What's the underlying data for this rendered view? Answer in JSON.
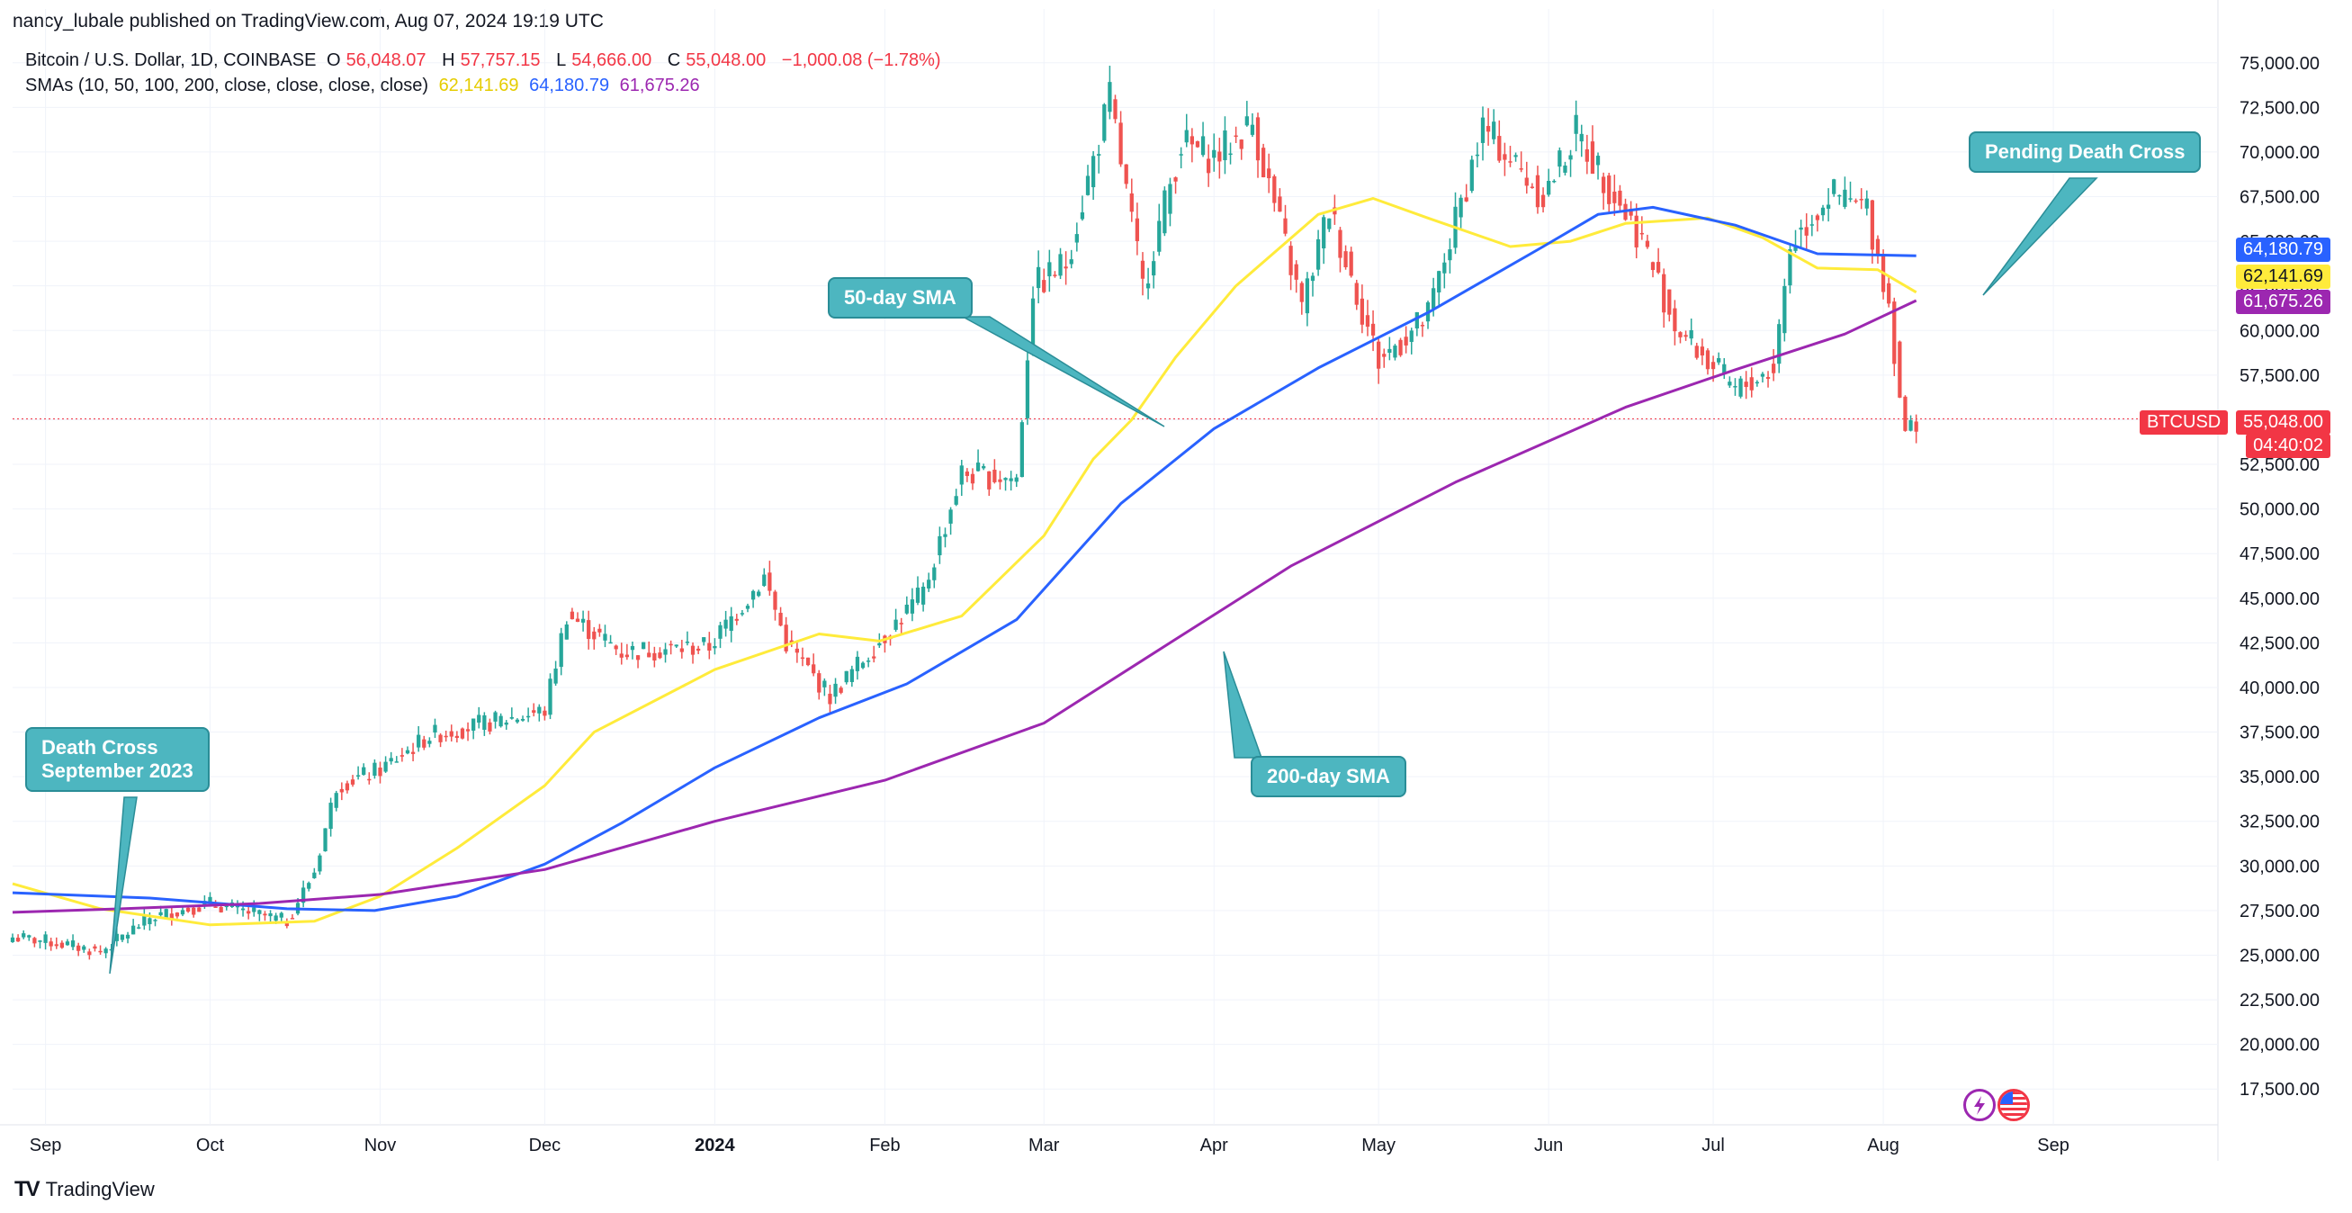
{
  "header": {
    "published": "nancy_lubale published on TradingView.com, Aug 07, 2024 19:19 UTC",
    "symbol": "Bitcoin / U.S. Dollar, 1D, COINBASE",
    "open_label": "O",
    "open": "56,048.07",
    "high_label": "H",
    "high": "57,757.15",
    "low_label": "L",
    "low": "54,666.00",
    "close_label": "C",
    "close": "55,048.00",
    "change": "−1,000.08 (−1.78%)",
    "sma_label": "SMAs (10, 50, 100, 200, close, close, close, close)",
    "sma50_value": "62,141.69",
    "sma100_value": "64,180.79",
    "sma200_value": "61,675.26"
  },
  "footer": {
    "brand": "TradingView"
  },
  "colors": {
    "up": "#26a69a",
    "down": "#ef5350",
    "sma50": "#ffeb3b",
    "sma100": "#2962ff",
    "sma200": "#9c27b0",
    "callout": "#4db6c0",
    "price_tag": "#f23645"
  },
  "price_tags": {
    "sma100": "64,180.79",
    "sma50": "62,141.69",
    "sma200": "61,675.26",
    "symbol": "BTCUSD",
    "last": "55,048.00",
    "countdown": "04:40:02"
  },
  "callouts": {
    "death_cross": "Death Cross\nSeptember 2023",
    "sma50": "50-day SMA",
    "sma200": "200-day SMA",
    "pending": "Pending Death Cross"
  },
  "chart_data": {
    "type": "candlestick",
    "title": "Bitcoin / U.S. Dollar, 1D, COINBASE",
    "x_tick_labels": [
      "Sep",
      "Oct",
      "Nov",
      "Dec",
      "2024",
      "Feb",
      "Mar",
      "Apr",
      "May",
      "Jun",
      "Jul",
      "Aug",
      "Sep"
    ],
    "x_tick_dates": [
      "2023-09-01",
      "2023-10-01",
      "2023-11-01",
      "2023-12-01",
      "2024-01-01",
      "2024-02-01",
      "2024-03-01",
      "2024-04-01",
      "2024-05-01",
      "2024-06-01",
      "2024-07-01",
      "2024-08-01",
      "2024-09-01"
    ],
    "y_tick_labels": [
      "75,000.00",
      "72,500.00",
      "70,000.00",
      "67,500.00",
      "65,000.00",
      "62,500.00",
      "60,000.00",
      "57,500.00",
      "55,000.00",
      "52,500.00",
      "50,000.00",
      "47,500.00",
      "45,000.00",
      "42,500.00",
      "40,000.00",
      "37,500.00",
      "35,000.00",
      "32,500.00",
      "30,000.00",
      "27,500.00",
      "25,000.00",
      "22,500.00",
      "20,000.00",
      "17,500.00"
    ],
    "ylim": [
      16000,
      76500
    ],
    "xlim": [
      "2023-08-26",
      "2024-10-01"
    ],
    "grid": true,
    "close_path": [
      {
        "date": "2023-08-26",
        "close": 26000
      },
      {
        "date": "2023-09-01",
        "close": 25800
      },
      {
        "date": "2023-09-11",
        "close": 25200
      },
      {
        "date": "2023-09-20",
        "close": 27100
      },
      {
        "date": "2023-10-01",
        "close": 27900
      },
      {
        "date": "2023-10-15",
        "close": 26900
      },
      {
        "date": "2023-10-20",
        "close": 29700
      },
      {
        "date": "2023-10-24",
        "close": 34500
      },
      {
        "date": "2023-11-01",
        "close": 35400
      },
      {
        "date": "2023-11-10",
        "close": 37300
      },
      {
        "date": "2023-12-01",
        "close": 38700
      },
      {
        "date": "2023-12-05",
        "close": 44100
      },
      {
        "date": "2023-12-15",
        "close": 42000
      },
      {
        "date": "2023-12-31",
        "close": 42300
      },
      {
        "date": "2024-01-10",
        "close": 46200
      },
      {
        "date": "2024-01-14",
        "close": 42500
      },
      {
        "date": "2024-01-22",
        "close": 39500
      },
      {
        "date": "2024-01-31",
        "close": 42600
      },
      {
        "date": "2024-02-08",
        "close": 45300
      },
      {
        "date": "2024-02-15",
        "close": 52000
      },
      {
        "date": "2024-02-25",
        "close": 51700
      },
      {
        "date": "2024-02-28",
        "close": 62400
      },
      {
        "date": "2024-03-05",
        "close": 63800
      },
      {
        "date": "2024-03-13",
        "close": 73000
      },
      {
        "date": "2024-03-19",
        "close": 62400
      },
      {
        "date": "2024-03-26",
        "close": 70500
      },
      {
        "date": "2024-04-01",
        "close": 69700
      },
      {
        "date": "2024-04-08",
        "close": 71600
      },
      {
        "date": "2024-04-17",
        "close": 61300
      },
      {
        "date": "2024-04-22",
        "close": 66800
      },
      {
        "date": "2024-05-01",
        "close": 58300
      },
      {
        "date": "2024-05-10",
        "close": 60800
      },
      {
        "date": "2024-05-20",
        "close": 71400
      },
      {
        "date": "2024-05-31",
        "close": 67500
      },
      {
        "date": "2024-06-06",
        "close": 71100
      },
      {
        "date": "2024-06-18",
        "close": 65100
      },
      {
        "date": "2024-06-24",
        "close": 60300
      },
      {
        "date": "2024-07-05",
        "close": 56600
      },
      {
        "date": "2024-07-12",
        "close": 57900
      },
      {
        "date": "2024-07-15",
        "close": 64800
      },
      {
        "date": "2024-07-22",
        "close": 67600
      },
      {
        "date": "2024-07-29",
        "close": 66800
      },
      {
        "date": "2024-08-02",
        "close": 61500
      },
      {
        "date": "2024-08-05",
        "close": 54000
      },
      {
        "date": "2024-08-07",
        "close": 55048
      }
    ],
    "series": [
      {
        "name": "SMA 50",
        "color": "#ffeb3b",
        "points": [
          {
            "date": "2023-08-26",
            "value": 29000
          },
          {
            "date": "2023-09-11",
            "value": 27600
          },
          {
            "date": "2023-10-01",
            "value": 26700
          },
          {
            "date": "2023-10-20",
            "value": 26900
          },
          {
            "date": "2023-11-01",
            "value": 28300
          },
          {
            "date": "2023-11-15",
            "value": 31000
          },
          {
            "date": "2023-12-01",
            "value": 34500
          },
          {
            "date": "2023-12-10",
            "value": 37500
          },
          {
            "date": "2024-01-01",
            "value": 41000
          },
          {
            "date": "2024-01-20",
            "value": 43000
          },
          {
            "date": "2024-01-31",
            "value": 42600
          },
          {
            "date": "2024-02-15",
            "value": 44000
          },
          {
            "date": "2024-03-01",
            "value": 48500
          },
          {
            "date": "2024-03-10",
            "value": 52800
          },
          {
            "date": "2024-03-17",
            "value": 55000
          },
          {
            "date": "2024-03-25",
            "value": 58500
          },
          {
            "date": "2024-04-05",
            "value": 62500
          },
          {
            "date": "2024-04-20",
            "value": 66500
          },
          {
            "date": "2024-04-30",
            "value": 67400
          },
          {
            "date": "2024-05-10",
            "value": 66300
          },
          {
            "date": "2024-05-25",
            "value": 64700
          },
          {
            "date": "2024-06-05",
            "value": 65000
          },
          {
            "date": "2024-06-15",
            "value": 66000
          },
          {
            "date": "2024-06-30",
            "value": 66300
          },
          {
            "date": "2024-07-10",
            "value": 65200
          },
          {
            "date": "2024-07-20",
            "value": 63500
          },
          {
            "date": "2024-07-31",
            "value": 63400
          },
          {
            "date": "2024-08-07",
            "value": 62141.69
          }
        ]
      },
      {
        "name": "SMA 100",
        "color": "#2962ff",
        "points": [
          {
            "date": "2023-08-26",
            "value": 28500
          },
          {
            "date": "2023-09-20",
            "value": 28200
          },
          {
            "date": "2023-10-15",
            "value": 27600
          },
          {
            "date": "2023-10-31",
            "value": 27500
          },
          {
            "date": "2023-11-15",
            "value": 28300
          },
          {
            "date": "2023-12-01",
            "value": 30100
          },
          {
            "date": "2023-12-15",
            "value": 32400
          },
          {
            "date": "2024-01-01",
            "value": 35500
          },
          {
            "date": "2024-01-20",
            "value": 38300
          },
          {
            "date": "2024-02-05",
            "value": 40200
          },
          {
            "date": "2024-02-25",
            "value": 43800
          },
          {
            "date": "2024-03-15",
            "value": 50300
          },
          {
            "date": "2024-04-01",
            "value": 54500
          },
          {
            "date": "2024-04-20",
            "value": 57900
          },
          {
            "date": "2024-05-10",
            "value": 61000
          },
          {
            "date": "2024-05-31",
            "value": 64700
          },
          {
            "date": "2024-06-10",
            "value": 66500
          },
          {
            "date": "2024-06-20",
            "value": 66900
          },
          {
            "date": "2024-07-05",
            "value": 65900
          },
          {
            "date": "2024-07-20",
            "value": 64300
          },
          {
            "date": "2024-08-07",
            "value": 64180.79
          }
        ]
      },
      {
        "name": "SMA 200",
        "color": "#9c27b0",
        "points": [
          {
            "date": "2023-08-26",
            "value": 27400
          },
          {
            "date": "2023-09-15",
            "value": 27600
          },
          {
            "date": "2023-10-10",
            "value": 27900
          },
          {
            "date": "2023-11-01",
            "value": 28400
          },
          {
            "date": "2023-12-01",
            "value": 29800
          },
          {
            "date": "2024-01-01",
            "value": 32500
          },
          {
            "date": "2024-02-01",
            "value": 34800
          },
          {
            "date": "2024-03-01",
            "value": 38000
          },
          {
            "date": "2024-03-25",
            "value": 42700
          },
          {
            "date": "2024-04-15",
            "value": 46800
          },
          {
            "date": "2024-05-15",
            "value": 51500
          },
          {
            "date": "2024-06-15",
            "value": 55700
          },
          {
            "date": "2024-07-05",
            "value": 57800
          },
          {
            "date": "2024-07-25",
            "value": 59800
          },
          {
            "date": "2024-08-07",
            "value": 61675.26
          }
        ]
      }
    ]
  }
}
